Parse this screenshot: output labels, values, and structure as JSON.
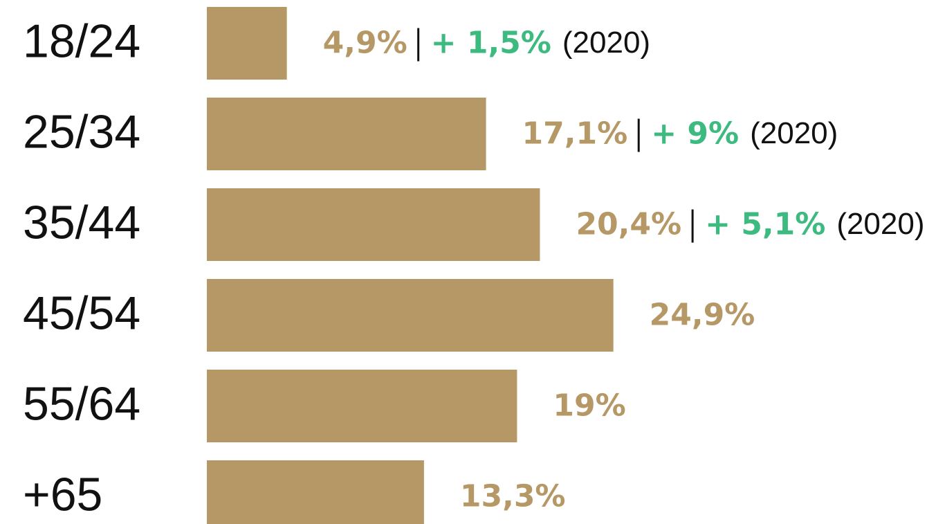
{
  "chart_data": {
    "type": "bar",
    "orientation": "horizontal",
    "categories": [
      "18/24",
      "25/34",
      "35/44",
      "45/54",
      "55/64",
      "+65"
    ],
    "values": [
      4.9,
      17.1,
      20.4,
      24.9,
      19,
      13.3
    ],
    "value_labels": [
      "4,9%",
      "17,1%",
      "20,4%",
      "24,9%",
      "19%",
      "13,3%"
    ],
    "color": "#b59865",
    "label_color": "#b59865",
    "change_values": [
      1.5,
      9,
      5.1,
      null,
      null,
      null
    ],
    "change_labels": [
      "+ 1,5%",
      "+ 9%",
      "+ 5,1%",
      null,
      null,
      null
    ],
    "change_color": "#3dba7f",
    "change_year": "(2020)",
    "xlim": [
      0,
      25
    ]
  }
}
